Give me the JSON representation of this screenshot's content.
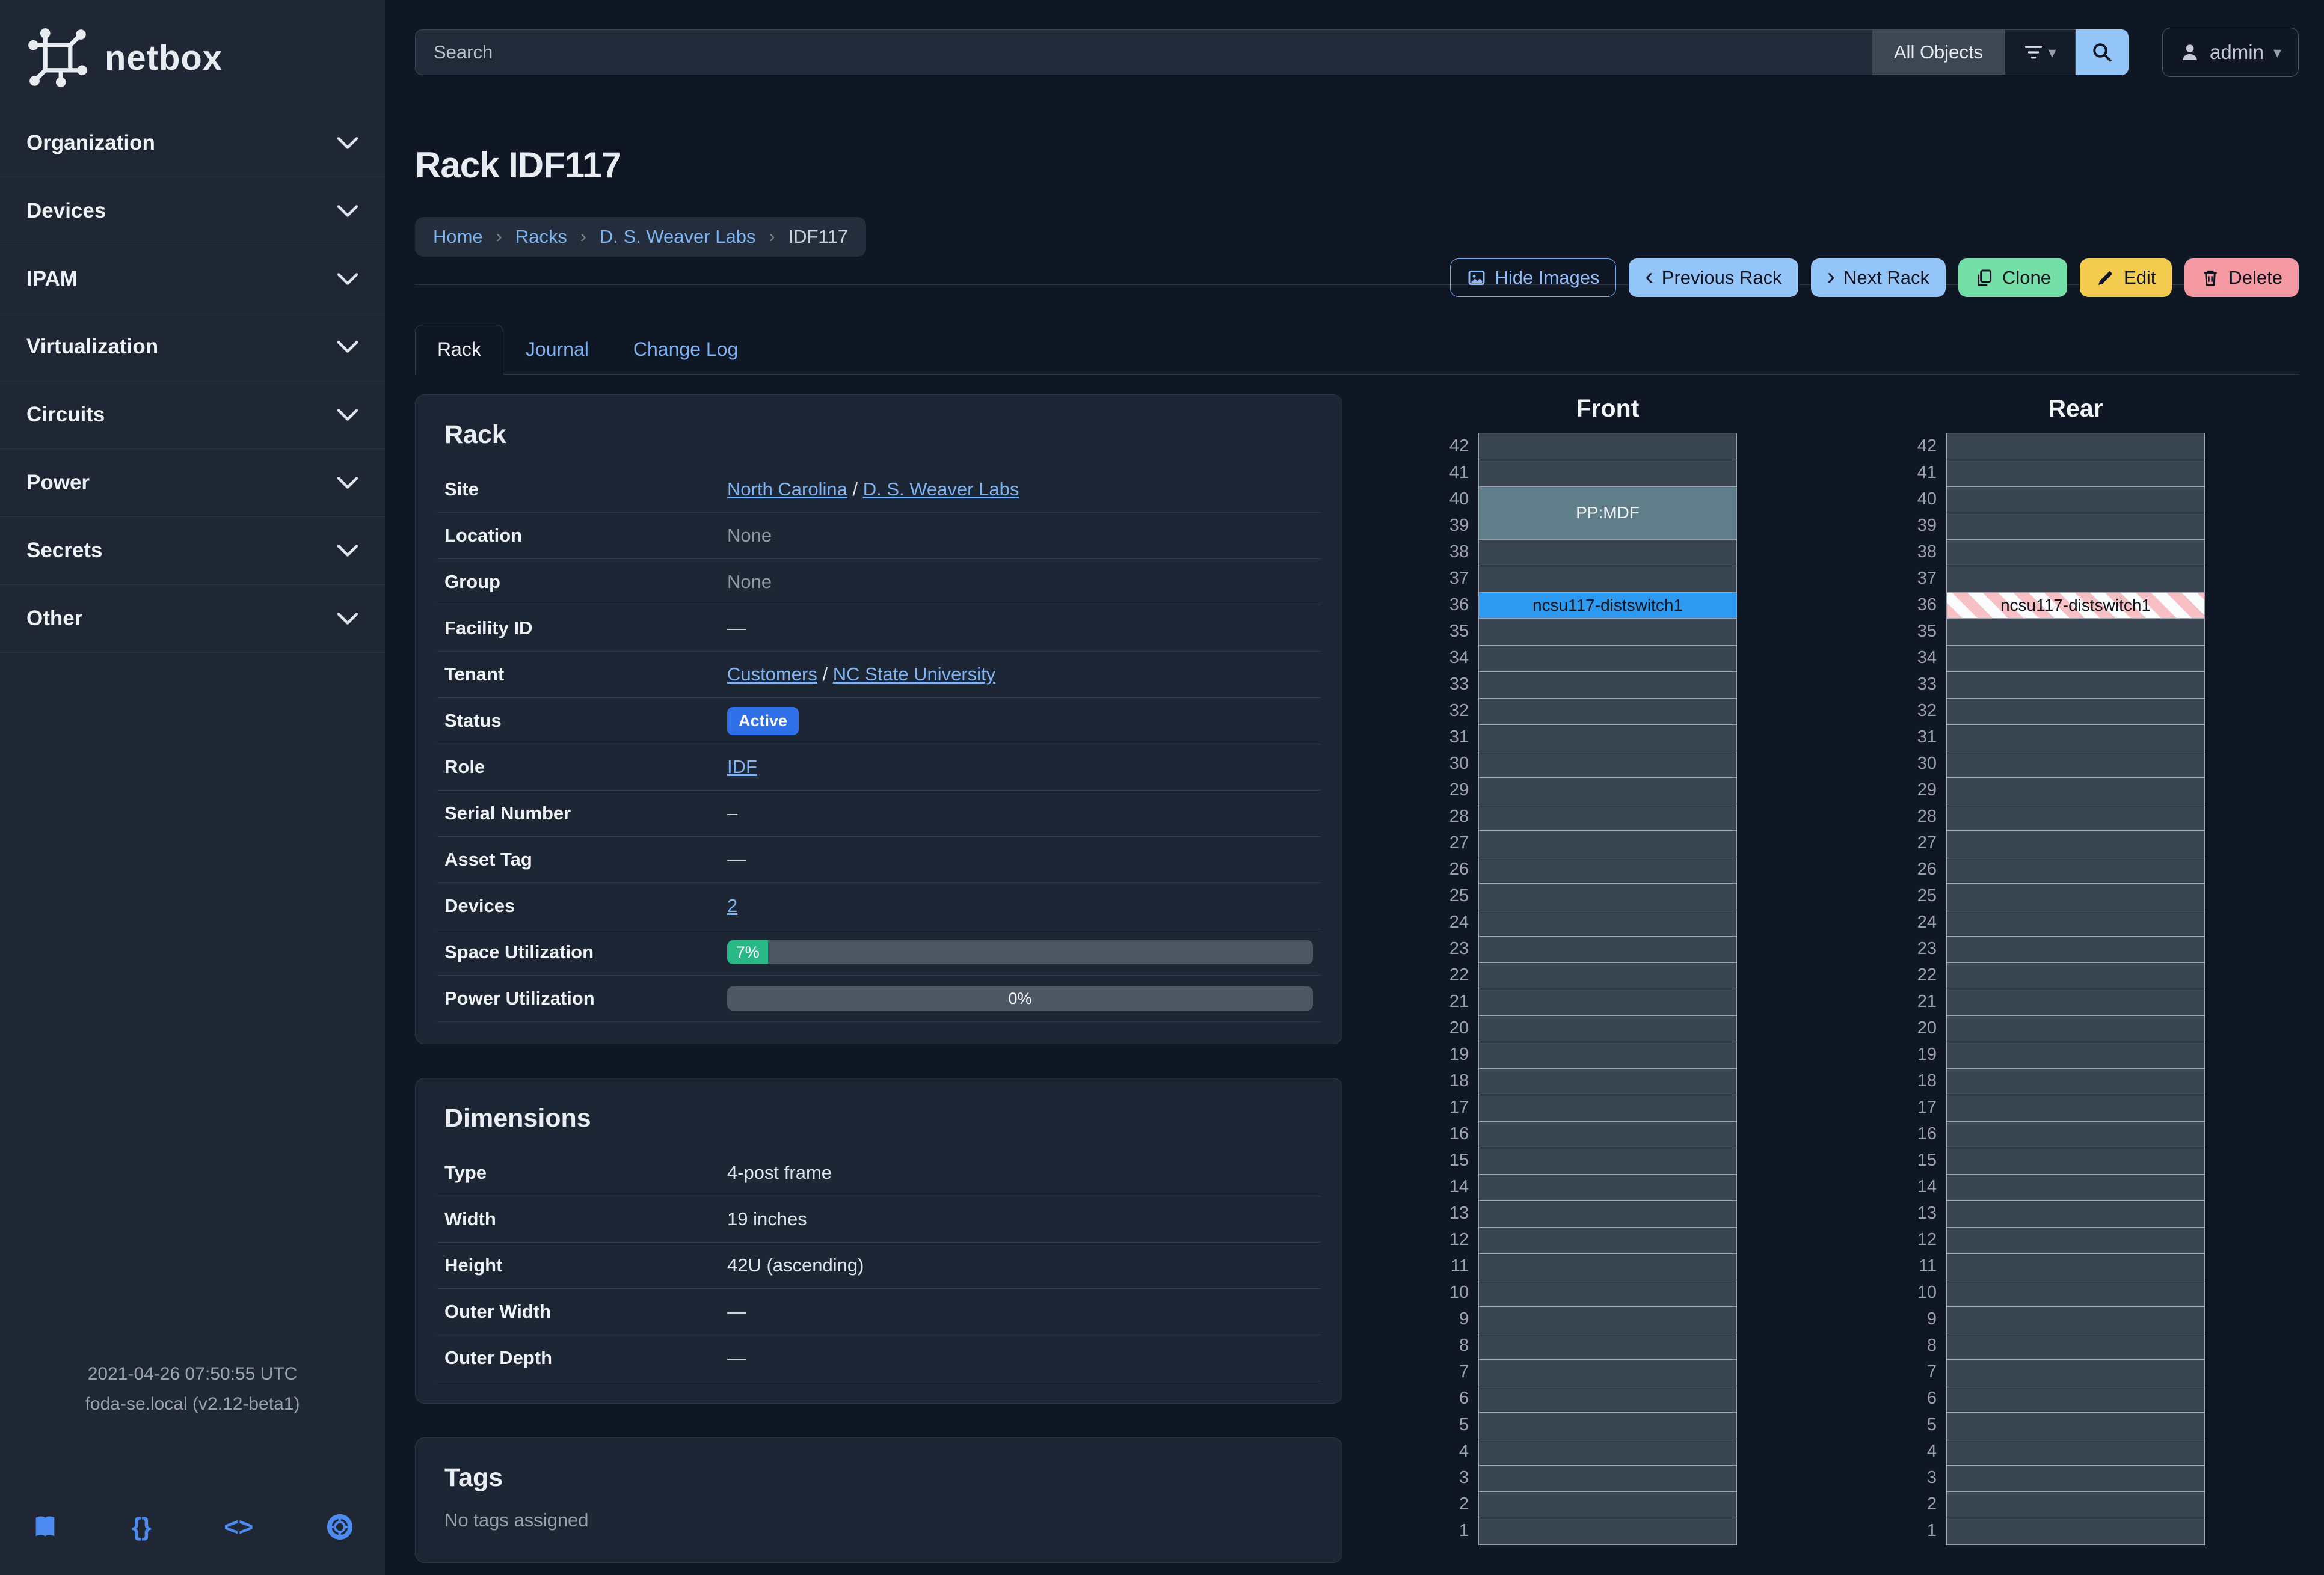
{
  "colors": {
    "badge_active": "#2f6fe8",
    "progress_green": "#29b986",
    "device_blue": "#2b9af0",
    "device_teal": "#5f7e8a",
    "link_blue": "#7fb3f2"
  },
  "sidebar": {
    "logo_text": "netbox",
    "items": [
      {
        "label": "Organization"
      },
      {
        "label": "Devices"
      },
      {
        "label": "IPAM"
      },
      {
        "label": "Virtualization"
      },
      {
        "label": "Circuits"
      },
      {
        "label": "Power"
      },
      {
        "label": "Secrets"
      },
      {
        "label": "Other"
      }
    ],
    "footer": {
      "timestamp": "2021-04-26 07:50:55 UTC",
      "version": "foda-se.local (v2.12-beta1)"
    },
    "footer_icons": [
      {
        "icon": "book-icon",
        "name": "docs-book-icon"
      },
      {
        "icon": "braces-icon",
        "name": "rest-api-braces-icon"
      },
      {
        "icon": "code-icon",
        "name": "source-code-icon"
      },
      {
        "icon": "lifebuoy-icon",
        "name": "help-lifebuoy-icon"
      }
    ]
  },
  "topbar": {
    "search_placeholder": "Search",
    "scope_label": "All Objects",
    "user": "admin"
  },
  "header": {
    "title": "Rack IDF117",
    "breadcrumb": [
      {
        "label": "Home",
        "link": true
      },
      {
        "label": "Racks",
        "link": true
      },
      {
        "label": "D. S. Weaver Labs",
        "link": true
      },
      {
        "label": "IDF117",
        "link": false
      }
    ],
    "actions": [
      {
        "label": "Hide Images",
        "icon": "image-icon",
        "style": "outline"
      },
      {
        "label": "Previous Rack",
        "icon": "chevron-left-icon",
        "style": "blue"
      },
      {
        "label": "Next Rack",
        "icon": "chevron-right-icon",
        "style": "blue"
      },
      {
        "label": "Clone",
        "icon": "copy-icon",
        "style": "green"
      },
      {
        "label": "Edit",
        "icon": "pencil-icon",
        "style": "yellow"
      },
      {
        "label": "Delete",
        "icon": "trash-icon",
        "style": "red"
      }
    ]
  },
  "tabs": [
    {
      "label": "Rack",
      "active": true
    },
    {
      "label": "Journal",
      "active": false
    },
    {
      "label": "Change Log",
      "active": false
    }
  ],
  "rack_panel": {
    "title": "Rack",
    "rows": [
      {
        "label": "Site",
        "type": "links",
        "links": [
          "North Carolina",
          "D. S. Weaver Labs"
        ]
      },
      {
        "label": "Location",
        "type": "muted",
        "value": "None"
      },
      {
        "label": "Group",
        "type": "muted",
        "value": "None"
      },
      {
        "label": "Facility ID",
        "type": "dash",
        "value": "—"
      },
      {
        "label": "Tenant",
        "type": "links",
        "links": [
          "Customers",
          "NC State University"
        ]
      },
      {
        "label": "Status",
        "type": "badge",
        "value": "Active"
      },
      {
        "label": "Role",
        "type": "links",
        "links": [
          "IDF"
        ]
      },
      {
        "label": "Serial Number",
        "type": "dash",
        "value": "–"
      },
      {
        "label": "Asset Tag",
        "type": "dash",
        "value": "—"
      },
      {
        "label": "Devices",
        "type": "links",
        "links": [
          "2"
        ]
      },
      {
        "label": "Space Utilization",
        "type": "progress",
        "percent": 7,
        "display": "7%",
        "variant": "green"
      },
      {
        "label": "Power Utilization",
        "type": "progress",
        "percent": 0,
        "display": "0%",
        "variant": "empty"
      }
    ]
  },
  "dimensions_panel": {
    "title": "Dimensions",
    "rows": [
      {
        "label": "Type",
        "type": "text",
        "value": "4-post frame"
      },
      {
        "label": "Width",
        "type": "text",
        "value": "19 inches"
      },
      {
        "label": "Height",
        "type": "text",
        "value": "42U (ascending)"
      },
      {
        "label": "Outer Width",
        "type": "dash",
        "value": "—"
      },
      {
        "label": "Outer Depth",
        "type": "dash",
        "value": "—"
      }
    ]
  },
  "tags_panel": {
    "title": "Tags",
    "empty_text": "No tags assigned"
  },
  "elevations": {
    "units_total": 42,
    "front": {
      "title": "Front",
      "devices": [
        {
          "name": "PP:MDF",
          "top_unit": 40,
          "height_u": 2,
          "style": "teal"
        },
        {
          "name": "ncsu117-distswitch1",
          "top_unit": 36,
          "height_u": 1,
          "style": "blue"
        }
      ]
    },
    "rear": {
      "title": "Rear",
      "devices": [
        {
          "name": "ncsu117-distswitch1",
          "top_unit": 36,
          "height_u": 1,
          "style": "striped"
        }
      ]
    }
  }
}
